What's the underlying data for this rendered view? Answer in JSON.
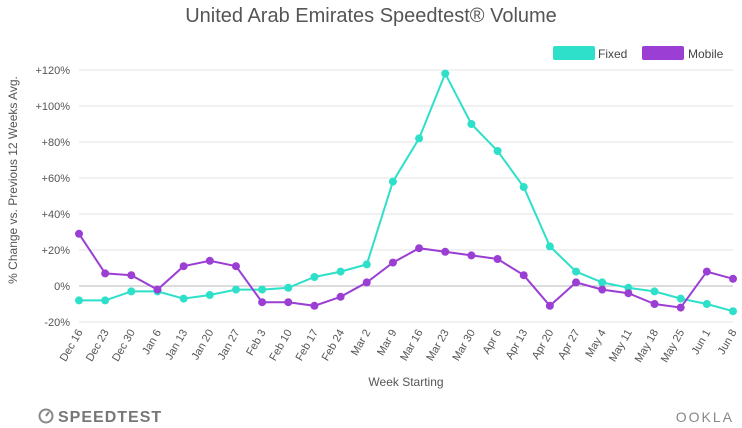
{
  "chart_data": {
    "type": "line",
    "title": "United Arab Emirates Speedtest® Volume",
    "xlabel": "Week Starting",
    "ylabel": "% Change vs. Previous 12 Weeks Avg.",
    "categories": [
      "Dec 16",
      "Dec 23",
      "Dec 30",
      "Jan 6",
      "Jan 13",
      "Jan 20",
      "Jan 27",
      "Feb 3",
      "Feb 10",
      "Feb 17",
      "Feb 24",
      "Mar 2",
      "Mar 9",
      "Mar 16",
      "Mar 23",
      "Mar 30",
      "Apr 6",
      "Apr 13",
      "Apr 20",
      "Apr 27",
      "May 4",
      "May 11",
      "May 18",
      "May 25",
      "Jun 1",
      "Jun 8"
    ],
    "ylim": [
      -20,
      120
    ],
    "yticks": [
      -20,
      0,
      20,
      40,
      60,
      80,
      100,
      120
    ],
    "ytick_labels": [
      "-20%",
      "0%",
      "+20%",
      "+40%",
      "+60%",
      "+80%",
      "+100%",
      "+120%"
    ],
    "grid": true,
    "legend_position": "top-right",
    "series": [
      {
        "name": "Fixed",
        "color": "#2ee0c9",
        "values": [
          -8,
          -8,
          -3,
          -3,
          -7,
          -5,
          -2,
          -2,
          -1,
          5,
          8,
          12,
          58,
          82,
          118,
          90,
          75,
          55,
          22,
          8,
          2,
          -1,
          -3,
          -7,
          -10,
          -14
        ]
      },
      {
        "name": "Mobile",
        "color": "#9b3fd4",
        "values": [
          29,
          7,
          6,
          -2,
          11,
          14,
          11,
          -9,
          -9,
          -11,
          -6,
          2,
          13,
          21,
          19,
          17,
          15,
          6,
          -11,
          2,
          -2,
          -4,
          -10,
          -12,
          8,
          4
        ]
      }
    ]
  },
  "branding": {
    "left": "SPEEDTEST",
    "right": "OOKLA"
  }
}
